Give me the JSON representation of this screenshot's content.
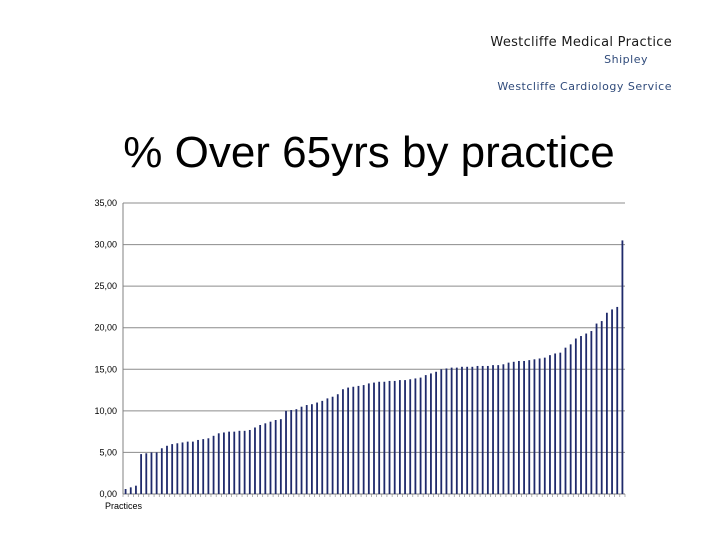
{
  "header": {
    "org_name": "Westcliffe Medical Practice",
    "org_location": "Shipley",
    "service_name": "Westcliffe Cardiology Service"
  },
  "colors": {
    "bar": "#1f2a6b",
    "grid": "#8c8c8c",
    "axis": "#808080"
  },
  "chart_data": {
    "type": "bar",
    "title": "% Over 65yrs by practice",
    "xlabel": "Practices",
    "ylabel": "",
    "ylim": [
      0,
      35
    ],
    "yticks": [
      "0,00",
      "5,00",
      "10,00",
      "15,00",
      "20,00",
      "25,00",
      "30,00",
      "35,00"
    ],
    "grid": true,
    "values": [
      0.6,
      0.8,
      1.0,
      4.8,
      4.9,
      5.0,
      5.0,
      5.5,
      5.8,
      6.0,
      6.1,
      6.2,
      6.3,
      6.3,
      6.5,
      6.6,
      6.7,
      7.0,
      7.3,
      7.4,
      7.5,
      7.5,
      7.6,
      7.6,
      7.7,
      8.0,
      8.3,
      8.5,
      8.7,
      8.9,
      9.0,
      10.0,
      10.1,
      10.2,
      10.5,
      10.7,
      10.8,
      11.0,
      11.2,
      11.5,
      11.7,
      12.0,
      12.6,
      12.8,
      12.9,
      13.0,
      13.1,
      13.3,
      13.4,
      13.5,
      13.5,
      13.6,
      13.6,
      13.7,
      13.7,
      13.8,
      13.9,
      14.0,
      14.3,
      14.5,
      14.7,
      15.0,
      15.1,
      15.2,
      15.2,
      15.3,
      15.3,
      15.3,
      15.4,
      15.4,
      15.4,
      15.5,
      15.5,
      15.6,
      15.8,
      15.9,
      16.0,
      16.0,
      16.1,
      16.2,
      16.3,
      16.4,
      16.7,
      16.9,
      17.0,
      17.6,
      18.0,
      18.7,
      19.0,
      19.3,
      19.6,
      20.5,
      20.8,
      21.8,
      22.2,
      22.5,
      30.5
    ]
  }
}
